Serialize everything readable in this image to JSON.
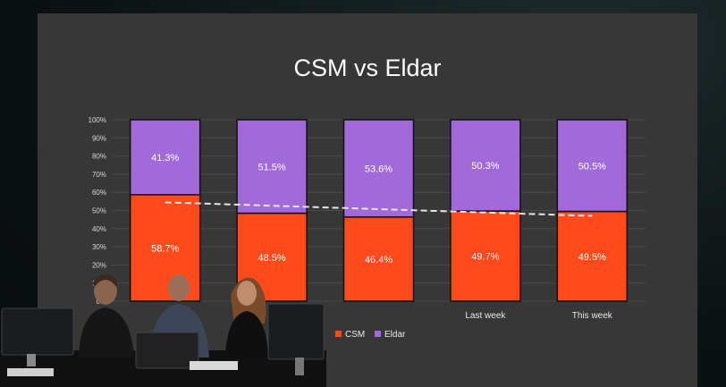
{
  "chart_data": {
    "type": "bar",
    "stacked": true,
    "title": "CSM vs Eldar",
    "categories": [
      "",
      "",
      "",
      "Last week",
      "This week"
    ],
    "series": [
      {
        "name": "CSM",
        "color": "#ff4a1c",
        "values": [
          58.7,
          48.5,
          46.4,
          49.7,
          49.5
        ]
      },
      {
        "name": "Eldar",
        "color": "#a26ad8",
        "values": [
          41.3,
          51.5,
          53.6,
          50.3,
          50.5
        ]
      }
    ],
    "data_labels": {
      "CSM": [
        "58.7%",
        "48.5%",
        "46.4%",
        "49.7%",
        "49.5%"
      ],
      "Eldar": [
        "41.3%",
        "51.5%",
        "53.6%",
        "50.3%",
        "50.5%"
      ]
    },
    "trendline": {
      "style": "dashed",
      "color": "#e6e6e6",
      "start": 54.5,
      "end": 47.0
    },
    "ylim": [
      0,
      100
    ],
    "yticks": [
      "0%",
      "10%",
      "20%",
      "30%",
      "40%",
      "50%",
      "60%",
      "70%",
      "80%",
      "90%",
      "100%"
    ],
    "grid": true,
    "legend_position": "bottom"
  }
}
